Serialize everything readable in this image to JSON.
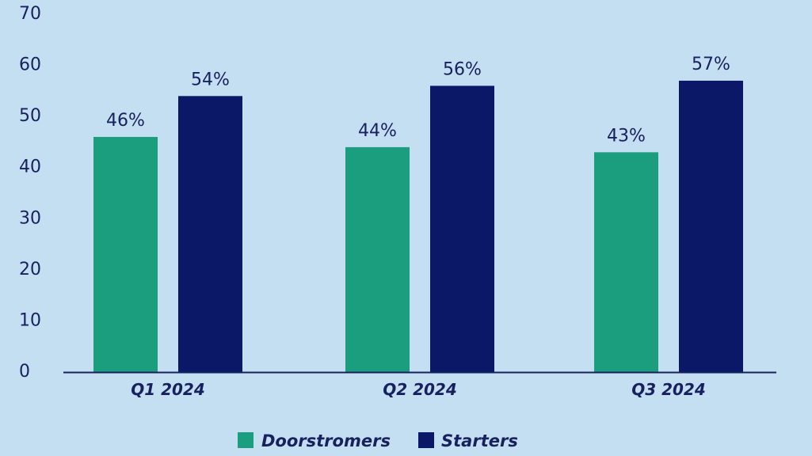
{
  "chart_data": {
    "type": "bar",
    "categories": [
      "Q1 2024",
      "Q2 2024",
      "Q3 2024"
    ],
    "series": [
      {
        "name": "Doorstromers",
        "values": [
          46,
          44,
          43
        ],
        "labels": [
          "46%",
          "44%",
          "43%"
        ],
        "color": "#1b9e7e"
      },
      {
        "name": "Starters",
        "values": [
          54,
          56,
          57
        ],
        "labels": [
          "54%",
          "56%",
          "57%"
        ],
        "color": "#0b1868"
      }
    ],
    "title": "",
    "xlabel": "",
    "ylabel": "",
    "ylim": [
      0,
      70
    ],
    "yticks": [
      "0",
      "10",
      "20",
      "30",
      "40",
      "50",
      "60",
      "70"
    ],
    "grid": false,
    "legend_position": "bottom-center"
  },
  "colors": {
    "background": "#c5dff2",
    "axis": "#16215e",
    "text": "#16215e"
  }
}
